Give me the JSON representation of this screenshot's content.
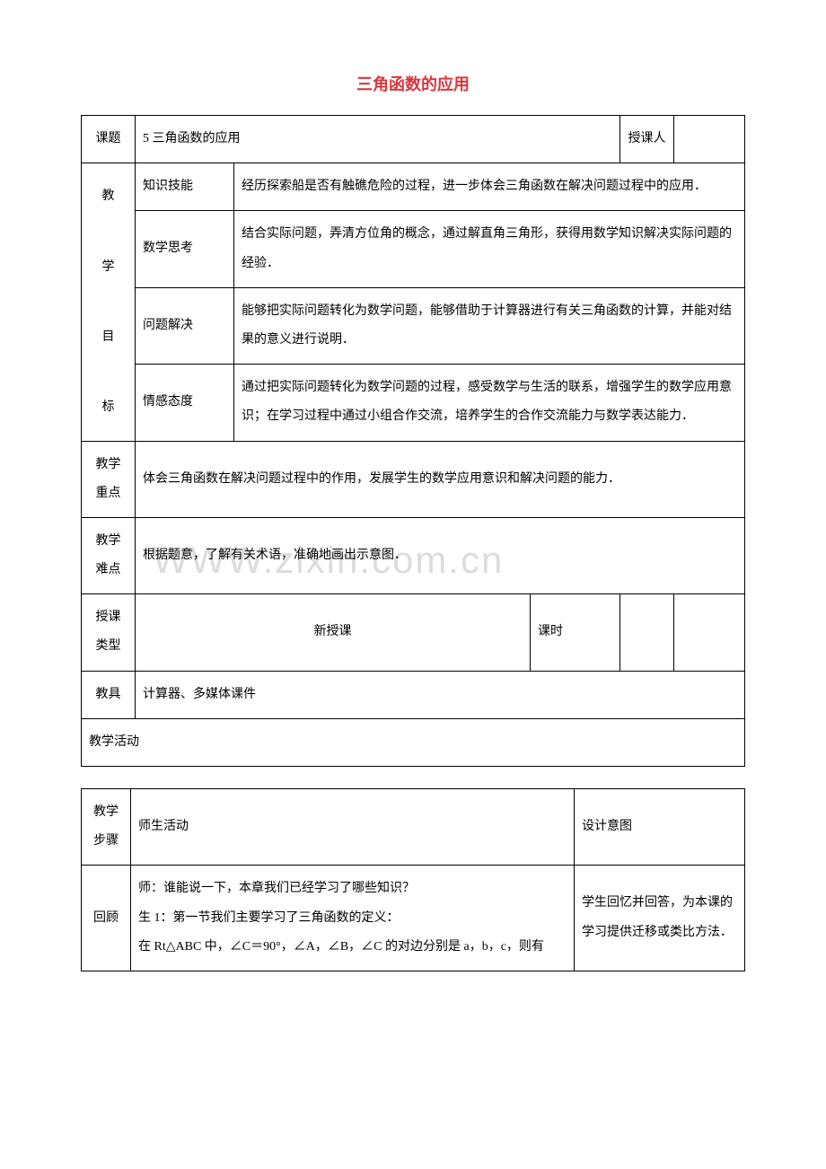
{
  "title": {
    "text": "三角函数的应用",
    "color": "#d9363e"
  },
  "watermark": {
    "text": "WWW.zixin.com.cn",
    "color": "#dcdcdc"
  },
  "table1": {
    "row1": {
      "c1": "课题",
      "c2": "5 三角函数的应用",
      "c3": "授课人"
    },
    "goals_label": "教\n学\n目\n标",
    "goals": [
      {
        "label": "知识技能",
        "text": "经历探索船是否有触礁危险的过程，进一步体会三角函数在解决问题过程中的应用．"
      },
      {
        "label": "数学思考",
        "text": "结合实际问题，弄清方位角的概念，通过解直角三角形，获得用数学知识解决实际问题的经验．"
      },
      {
        "label": "问题解决",
        "text": "能够把实际问题转化为数学问题，能够借助于计算器进行有关三角函数的计算，并能对结果的意义进行说明．"
      },
      {
        "label": "情感态度",
        "text": "通过把实际问题转化为数学问题的过程，感受数学与生活的联系，增强学生的数学应用意识；在学习过程中通过小组合作交流，培养学生的合作交流能力与数学表达能力．"
      }
    ],
    "focus": {
      "label": "教学重点",
      "text": "体会三角函数在解决问题过程中的作用，发展学生的数学应用意识和解决问题的能力．"
    },
    "difficulty": {
      "label": "教学难点",
      "text": "根据题意，了解有关术语，准确地画出示意图．"
    },
    "type": {
      "label": "授课类型",
      "value": "新授课",
      "period_label": "课时"
    },
    "tools": {
      "label": "教具",
      "text": "计算器、多媒体课件"
    },
    "activity_label": "教学活动"
  },
  "table2": {
    "header": {
      "c1": "教学步骤",
      "c2": "师生活动",
      "c3": "设计意图"
    },
    "row": {
      "c1": "回顾",
      "c2": "师：谁能说一下，本章我们已经学习了哪些知识？\n生 1：第一节我们主要学习了三角函数的定义：\n在 Rt△ABC 中，∠C＝90°，∠A，∠B，∠C 的对边分别是 a，b，c，则有",
      "c3": "学生回忆并回答，为本课的学习提供迁移或类比方法．"
    }
  },
  "colors": {
    "border": "#000000",
    "text": "#000000",
    "background": "#ffffff"
  }
}
